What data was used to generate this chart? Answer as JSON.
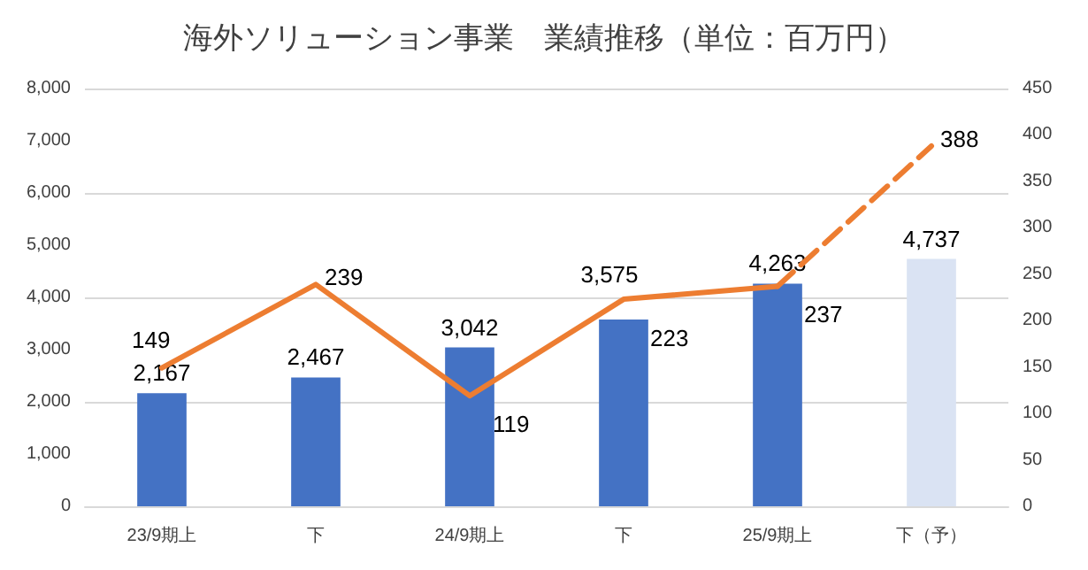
{
  "chart_data": {
    "type": "bar",
    "title": "海外ソリューション事業　業績推移（単位：百万円）",
    "categories": [
      "23/9期上",
      "下",
      "24/9期上",
      "下",
      "25/9期上",
      "下（予）"
    ],
    "series": [
      {
        "values": [
          2167,
          2467,
          3042,
          3575,
          4263,
          4737
        ],
        "value_labels": [
          "2,167",
          "2,467",
          "3,042",
          "3,575",
          "4,263",
          "4,737"
        ],
        "colors": [
          "#4472c4",
          "#4472c4",
          "#4472c4",
          "#4472c4",
          "#4472c4",
          "#dae3f3"
        ]
      },
      {
        "type": "line",
        "axis": "y2",
        "color": "#ed7d31",
        "line_style": "solid",
        "values": [
          149,
          239,
          119,
          223,
          237,
          null
        ],
        "value_labels": [
          "149",
          "239",
          "119",
          "223",
          "237",
          null
        ]
      },
      {
        "type": "line",
        "axis": "y2",
        "color": "#ed7d31",
        "line_style": "dashed",
        "values": [
          null,
          null,
          null,
          null,
          237,
          388
        ],
        "value_labels": [
          null,
          null,
          null,
          null,
          null,
          "388"
        ]
      }
    ],
    "grid": "y",
    "marker": "none",
    "ylim": [
      0,
      8000
    ],
    "yticks": [
      {
        "value": 0,
        "label": "0"
      },
      {
        "value": 1000,
        "label": "1,000"
      },
      {
        "value": 2000,
        "label": "2,000"
      },
      {
        "value": 3000,
        "label": "3,000"
      },
      {
        "value": 4000,
        "label": "4,000"
      },
      {
        "value": 5000,
        "label": "5,000"
      },
      {
        "value": 6000,
        "label": "6,000"
      },
      {
        "value": 7000,
        "label": "7,000"
      },
      {
        "value": 8000,
        "label": "8,000"
      }
    ],
    "y2lim": [
      0,
      450
    ],
    "y2ticks": [
      0,
      50,
      100,
      150,
      200,
      250,
      300,
      350,
      400,
      450
    ]
  }
}
